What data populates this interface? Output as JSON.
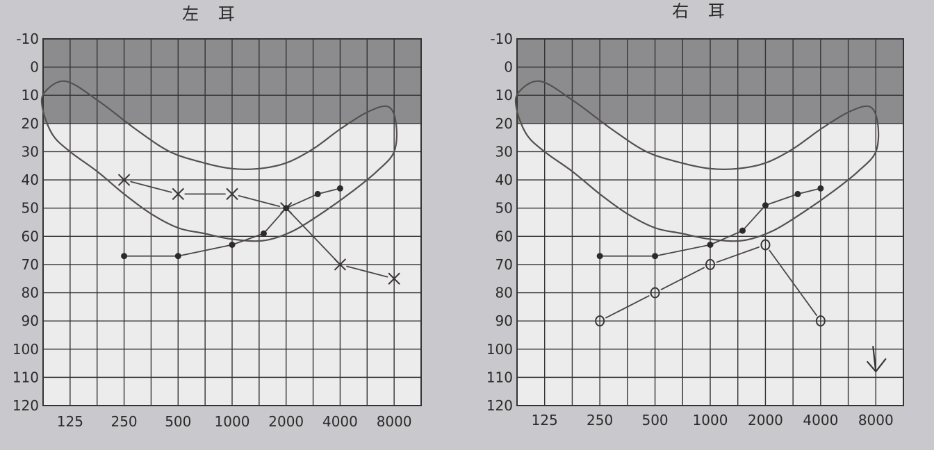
{
  "chart_data": [
    {
      "type": "line",
      "title": "左 耳",
      "x_ticks": [
        "125",
        "250",
        "500",
        "1000",
        "2000",
        "4000",
        "8000"
      ],
      "y_ticks": [
        "-10",
        "0",
        "10",
        "20",
        "30",
        "40",
        "50",
        "60",
        "70",
        "80",
        "90",
        "100",
        "110",
        "120"
      ],
      "ylim": [
        -10,
        120
      ],
      "y_inverted": true,
      "x_scale": "log (octave columns with half-octave gridlines)",
      "grid": true,
      "shaded_band": [
        -10,
        20
      ],
      "series": [
        {
          "marker": "x",
          "points": [
            [
              250,
              40
            ],
            [
              500,
              45
            ],
            [
              1000,
              45
            ],
            [
              2000,
              50
            ],
            [
              4000,
              70
            ],
            [
              8000,
              75
            ]
          ]
        },
        {
          "marker": "dot",
          "points": [
            [
              250,
              67
            ],
            [
              500,
              67
            ],
            [
              1000,
              63
            ],
            [
              1500,
              59
            ],
            [
              2000,
              50
            ],
            [
              3000,
              45
            ],
            [
              4000,
              43
            ]
          ]
        }
      ]
    },
    {
      "type": "line",
      "title": "右 耳",
      "x_ticks": [
        "125",
        "250",
        "500",
        "1000",
        "2000",
        "4000",
        "8000"
      ],
      "y_ticks": [
        "-10",
        "0",
        "10",
        "20",
        "30",
        "40",
        "50",
        "60",
        "70",
        "80",
        "90",
        "100",
        "110",
        "120"
      ],
      "ylim": [
        -10,
        120
      ],
      "y_inverted": true,
      "x_scale": "log (octave columns with half-octave gridlines)",
      "grid": true,
      "shaded_band": [
        -10,
        20
      ],
      "series": [
        {
          "marker": "dot",
          "points": [
            [
              250,
              67
            ],
            [
              500,
              67
            ],
            [
              1000,
              63
            ],
            [
              1500,
              58
            ],
            [
              2000,
              49
            ],
            [
              3000,
              45
            ],
            [
              4000,
              43
            ]
          ]
        },
        {
          "marker": "o",
          "points": [
            [
              250,
              90
            ],
            [
              500,
              80
            ],
            [
              1000,
              70
            ],
            [
              2000,
              63
            ],
            [
              4000,
              90
            ]
          ]
        }
      ],
      "annotations": [
        {
          "symbol": "down-arrow",
          "x": 8000,
          "y": 105
        }
      ]
    }
  ]
}
